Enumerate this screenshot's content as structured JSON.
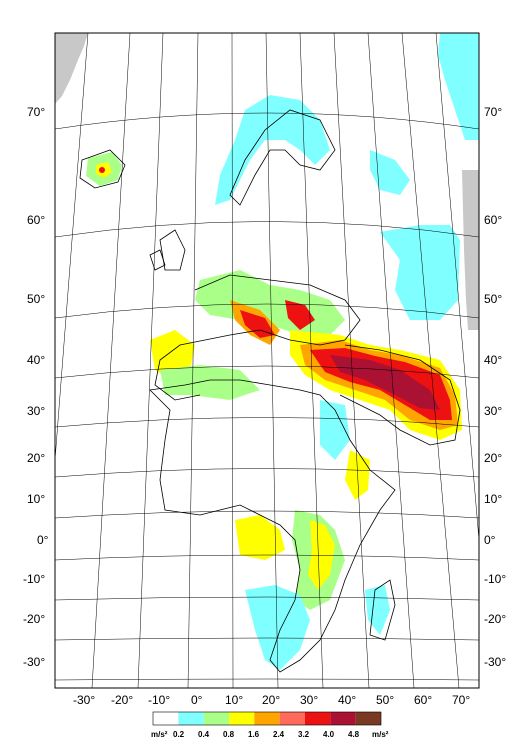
{
  "map": {
    "latitude_labels": [
      "70°",
      "60°",
      "50°",
      "40°",
      "30°",
      "20°",
      "10°",
      "0°",
      "-10°",
      "-20°",
      "-30°"
    ],
    "longitude_labels": [
      "-30°",
      "-20°",
      "-10°",
      "0°",
      "10°",
      "20°",
      "30°",
      "40°",
      "50°",
      "60°",
      "70°"
    ]
  },
  "legend": {
    "unit_left": "m/s²",
    "unit_right": "m/s²",
    "thresholds": [
      "0.2",
      "0.4",
      "0.8",
      "1.6",
      "2.4",
      "3.2",
      "4.0",
      "4.8"
    ],
    "colors": [
      "#ffffff",
      "#7fffff",
      "#aaff88",
      "#ffff00",
      "#ffa500",
      "#ff6a5a",
      "#ee1111",
      "#aa1133",
      "#7a3a22"
    ]
  }
}
